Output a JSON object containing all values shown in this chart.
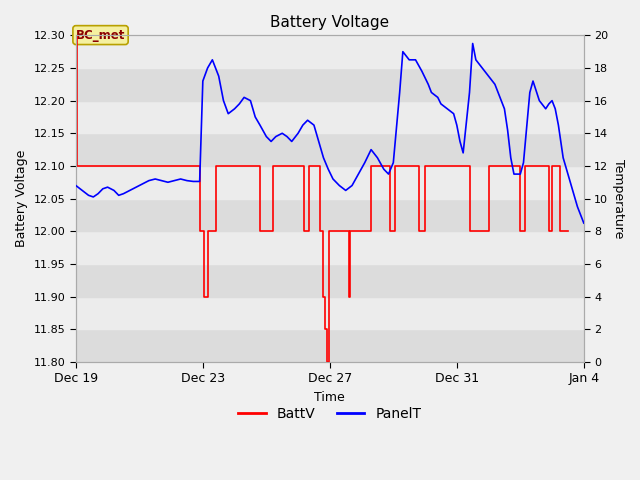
{
  "title": "Battery Voltage",
  "xlabel": "Time",
  "ylabel_left": "Battery Voltage",
  "ylabel_right": "Temperature",
  "bg_color": "#f0f0f0",
  "plot_bg_color": "#f0f0f0",
  "ylim_left": [
    11.8,
    12.3
  ],
  "ylim_right": [
    0,
    20
  ],
  "yticks_left": [
    11.8,
    11.85,
    11.9,
    11.95,
    12.0,
    12.05,
    12.1,
    12.15,
    12.2,
    12.25,
    12.3
  ],
  "yticks_right": [
    0,
    2,
    4,
    6,
    8,
    10,
    12,
    14,
    16,
    18,
    20
  ],
  "annotation_text": "BC_met",
  "legend_labels": [
    "BattV",
    "PanelT"
  ],
  "legend_colors": [
    "red",
    "blue"
  ],
  "batt_color": "red",
  "panel_color": "blue",
  "batt_data": [
    [
      0.0,
      12.3
    ],
    [
      0.05,
      12.3
    ],
    [
      0.05,
      12.1
    ],
    [
      3.9,
      12.1
    ],
    [
      3.9,
      12.0
    ],
    [
      4.05,
      12.0
    ],
    [
      4.05,
      11.9
    ],
    [
      4.15,
      11.9
    ],
    [
      4.15,
      12.0
    ],
    [
      4.4,
      12.0
    ],
    [
      4.4,
      12.1
    ],
    [
      5.8,
      12.1
    ],
    [
      5.8,
      12.0
    ],
    [
      6.2,
      12.0
    ],
    [
      6.2,
      12.1
    ],
    [
      7.2,
      12.1
    ],
    [
      7.2,
      12.0
    ],
    [
      7.35,
      12.0
    ],
    [
      7.35,
      12.1
    ],
    [
      7.7,
      12.1
    ],
    [
      7.7,
      12.0
    ],
    [
      7.8,
      12.0
    ],
    [
      7.8,
      11.9
    ],
    [
      7.85,
      11.9
    ],
    [
      7.85,
      11.85
    ],
    [
      7.9,
      11.85
    ],
    [
      7.9,
      11.8
    ],
    [
      7.98,
      11.8
    ],
    [
      7.98,
      12.0
    ],
    [
      8.6,
      12.0
    ],
    [
      8.6,
      11.9
    ],
    [
      8.65,
      11.9
    ],
    [
      8.65,
      12.0
    ],
    [
      9.3,
      12.0
    ],
    [
      9.3,
      12.1
    ],
    [
      9.9,
      12.1
    ],
    [
      9.9,
      12.0
    ],
    [
      10.05,
      12.0
    ],
    [
      10.05,
      12.1
    ],
    [
      10.8,
      12.1
    ],
    [
      10.8,
      12.0
    ],
    [
      11.0,
      12.0
    ],
    [
      11.0,
      12.1
    ],
    [
      12.4,
      12.1
    ],
    [
      12.4,
      12.0
    ],
    [
      13.0,
      12.0
    ],
    [
      13.0,
      12.1
    ],
    [
      14.0,
      12.1
    ],
    [
      14.0,
      12.0
    ],
    [
      14.15,
      12.0
    ],
    [
      14.15,
      12.1
    ],
    [
      14.9,
      12.1
    ],
    [
      14.9,
      12.0
    ],
    [
      15.0,
      12.0
    ],
    [
      15.0,
      12.1
    ],
    [
      15.25,
      12.1
    ],
    [
      15.25,
      12.0
    ],
    [
      15.5,
      12.0
    ]
  ],
  "panel_data": [
    [
      0.0,
      10.8
    ],
    [
      0.2,
      10.5
    ],
    [
      0.4,
      10.2
    ],
    [
      0.55,
      10.1
    ],
    [
      0.7,
      10.3
    ],
    [
      0.85,
      10.6
    ],
    [
      1.0,
      10.7
    ],
    [
      1.2,
      10.5
    ],
    [
      1.35,
      10.2
    ],
    [
      1.5,
      10.3
    ],
    [
      1.7,
      10.5
    ],
    [
      1.9,
      10.7
    ],
    [
      2.1,
      10.9
    ],
    [
      2.3,
      11.1
    ],
    [
      2.5,
      11.2
    ],
    [
      2.7,
      11.1
    ],
    [
      2.9,
      11.0
    ],
    [
      3.1,
      11.1
    ],
    [
      3.3,
      11.2
    ],
    [
      3.5,
      11.1
    ],
    [
      3.7,
      11.05
    ],
    [
      3.9,
      11.05
    ],
    [
      4.0,
      17.2
    ],
    [
      4.15,
      18.0
    ],
    [
      4.3,
      18.5
    ],
    [
      4.5,
      17.5
    ],
    [
      4.65,
      16.0
    ],
    [
      4.8,
      15.2
    ],
    [
      5.0,
      15.5
    ],
    [
      5.15,
      15.8
    ],
    [
      5.3,
      16.2
    ],
    [
      5.5,
      16.0
    ],
    [
      5.65,
      15.0
    ],
    [
      5.8,
      14.5
    ],
    [
      6.0,
      13.8
    ],
    [
      6.15,
      13.5
    ],
    [
      6.3,
      13.8
    ],
    [
      6.5,
      14.0
    ],
    [
      6.65,
      13.8
    ],
    [
      6.8,
      13.5
    ],
    [
      7.0,
      14.0
    ],
    [
      7.15,
      14.5
    ],
    [
      7.3,
      14.8
    ],
    [
      7.5,
      14.5
    ],
    [
      7.65,
      13.5
    ],
    [
      7.8,
      12.5
    ],
    [
      7.95,
      11.8
    ],
    [
      8.1,
      11.2
    ],
    [
      8.3,
      10.8
    ],
    [
      8.5,
      10.5
    ],
    [
      8.7,
      10.8
    ],
    [
      8.9,
      11.5
    ],
    [
      9.1,
      12.2
    ],
    [
      9.3,
      13.0
    ],
    [
      9.5,
      12.5
    ],
    [
      9.7,
      11.8
    ],
    [
      9.85,
      11.5
    ],
    [
      10.0,
      12.2
    ],
    [
      10.2,
      16.5
    ],
    [
      10.3,
      19.0
    ],
    [
      10.5,
      18.5
    ],
    [
      10.7,
      18.5
    ],
    [
      10.9,
      17.8
    ],
    [
      11.1,
      17.0
    ],
    [
      11.2,
      16.5
    ],
    [
      11.4,
      16.2
    ],
    [
      11.5,
      15.8
    ],
    [
      11.7,
      15.5
    ],
    [
      11.9,
      15.2
    ],
    [
      12.0,
      14.5
    ],
    [
      12.1,
      13.5
    ],
    [
      12.2,
      12.8
    ],
    [
      12.4,
      16.5
    ],
    [
      12.5,
      19.5
    ],
    [
      12.6,
      18.5
    ],
    [
      12.8,
      18.0
    ],
    [
      13.0,
      17.5
    ],
    [
      13.2,
      17.0
    ],
    [
      13.3,
      16.5
    ],
    [
      13.5,
      15.5
    ],
    [
      13.6,
      14.2
    ],
    [
      13.7,
      12.5
    ],
    [
      13.8,
      11.5
    ],
    [
      14.0,
      11.5
    ],
    [
      14.1,
      12.2
    ],
    [
      14.3,
      16.5
    ],
    [
      14.4,
      17.2
    ],
    [
      14.6,
      16.0
    ],
    [
      14.8,
      15.5
    ],
    [
      14.9,
      15.8
    ],
    [
      15.0,
      16.0
    ],
    [
      15.1,
      15.5
    ],
    [
      15.2,
      14.5
    ],
    [
      15.35,
      12.5
    ],
    [
      15.5,
      11.5
    ],
    [
      15.65,
      10.5
    ],
    [
      15.8,
      9.5
    ],
    [
      15.9,
      9.0
    ],
    [
      16.0,
      8.5
    ]
  ],
  "xlim": [
    0.0,
    16.0
  ],
  "xtick_positions": [
    0,
    4,
    8,
    12,
    16
  ],
  "xtick_labels": [
    "Dec 19",
    "Dec 23",
    "Dec 27",
    "Dec 31",
    "Jan 4"
  ],
  "hband_light": "#dcdcdc",
  "hband_white": "#ececec"
}
